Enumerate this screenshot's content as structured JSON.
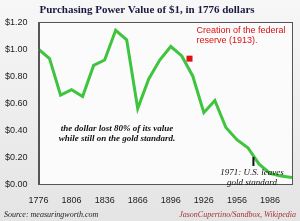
{
  "chart_data": {
    "type": "line",
    "title": "Purchasing Power Value of $1, in 1776 dollars",
    "x": [
      1776,
      1786,
      1796,
      1806,
      1816,
      1826,
      1836,
      1846,
      1856,
      1866,
      1876,
      1886,
      1896,
      1906,
      1916,
      1926,
      1936,
      1946,
      1956,
      1966,
      1976,
      1986,
      1996,
      2006
    ],
    "values": [
      1.0,
      0.93,
      0.66,
      0.7,
      0.65,
      0.88,
      0.92,
      1.14,
      1.07,
      0.56,
      0.78,
      0.92,
      1.02,
      0.95,
      0.8,
      0.53,
      0.62,
      0.42,
      0.33,
      0.27,
      0.15,
      0.08,
      0.06,
      0.05
    ],
    "color": "#3ec43e",
    "xlim": [
      1776,
      2006
    ],
    "xticks": [
      1776,
      1806,
      1836,
      1866,
      1896,
      1926,
      1956,
      1986
    ],
    "ylim": [
      0,
      1.2
    ],
    "yticks": [
      {
        "value": 0,
        "label": "$0.00"
      },
      {
        "value": 0.2,
        "label": "$0.20"
      },
      {
        "value": 0.4,
        "label": "$0.40"
      },
      {
        "value": 0.6,
        "label": "$0.60"
      },
      {
        "value": 0.8,
        "label": "$0.80"
      },
      {
        "value": 1.0,
        "label": "$1.00"
      },
      {
        "value": 1.2,
        "label": "$1.20"
      }
    ],
    "grid": false,
    "annotations": [
      {
        "text": "Creation of the federal reserve (1913).",
        "x": 1913,
        "y": 0.93,
        "color": "#dd1111"
      },
      {
        "text": "the dollar lost 80% of its value while still on the gold standard."
      },
      {
        "text": "1971: U.S. leaves gold standard",
        "x": 1971,
        "y": 0.15
      }
    ],
    "source": "Source: measuringworth.com",
    "credit": "JasonCupertino/Sandbox, Wikipedia"
  }
}
